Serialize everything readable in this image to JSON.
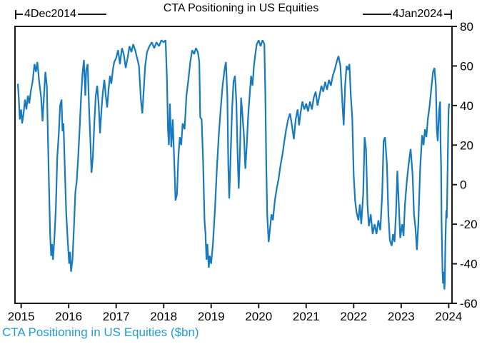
{
  "header": {
    "title": "CTA Positioning in US Equities",
    "range_start_label": "4Dec2014",
    "range_end_label": "4Jan2024"
  },
  "footer": {
    "series_label": "CTA Positioning in US Equities ($bn)"
  },
  "colors": {
    "line": "#1779BE",
    "axis": "#1a1a1a",
    "footer_text": "#219CD8",
    "background": "#ffffff"
  },
  "chart_data": {
    "type": "line",
    "title": "CTA Positioning in US Equities",
    "series_name": "CTA Positioning in US Equities ($bn)",
    "units": "$bn",
    "x_start": "4Dec2014",
    "x_end": "4Jan2024",
    "grid": false,
    "legend_position": "bottom-left",
    "y_axis_side": "right",
    "x_domain": [
      2014.87,
      2024.07
    ],
    "y_domain": [
      -60,
      80
    ],
    "x_ticks": [
      2015,
      2016,
      2017,
      2018,
      2019,
      2020,
      2021,
      2022,
      2023,
      2024
    ],
    "y_ticks": [
      80,
      60,
      40,
      20,
      0,
      -20,
      -40,
      -60
    ],
    "points": [
      [
        2014.93,
        51
      ],
      [
        2014.95,
        44
      ],
      [
        2014.97,
        33
      ],
      [
        2015.0,
        38
      ],
      [
        2015.02,
        31
      ],
      [
        2015.05,
        36
      ],
      [
        2015.08,
        43
      ],
      [
        2015.11,
        38
      ],
      [
        2015.14,
        45
      ],
      [
        2015.17,
        41
      ],
      [
        2015.2,
        47
      ],
      [
        2015.24,
        52
      ],
      [
        2015.28,
        61
      ],
      [
        2015.31,
        57
      ],
      [
        2015.34,
        62
      ],
      [
        2015.38,
        52
      ],
      [
        2015.42,
        44
      ],
      [
        2015.45,
        32
      ],
      [
        2015.48,
        45
      ],
      [
        2015.51,
        57
      ],
      [
        2015.54,
        50
      ],
      [
        2015.57,
        16
      ],
      [
        2015.59,
        -5
      ],
      [
        2015.61,
        -25
      ],
      [
        2015.63,
        -36
      ],
      [
        2015.65,
        -30
      ],
      [
        2015.67,
        -38
      ],
      [
        2015.7,
        -27
      ],
      [
        2015.73,
        -12
      ],
      [
        2015.76,
        14
      ],
      [
        2015.79,
        25
      ],
      [
        2015.82,
        40
      ],
      [
        2015.85,
        43
      ],
      [
        2015.87,
        27
      ],
      [
        2015.89,
        31
      ],
      [
        2015.92,
        8
      ],
      [
        2015.95,
        -15
      ],
      [
        2015.98,
        -28
      ],
      [
        2016.01,
        -40
      ],
      [
        2016.03,
        -34
      ],
      [
        2016.05,
        -44
      ],
      [
        2016.08,
        -38
      ],
      [
        2016.11,
        -22
      ],
      [
        2016.14,
        -4
      ],
      [
        2016.17,
        2
      ],
      [
        2016.2,
        14
      ],
      [
        2016.23,
        28
      ],
      [
        2016.26,
        44
      ],
      [
        2016.29,
        56
      ],
      [
        2016.32,
        63
      ],
      [
        2016.35,
        45
      ],
      [
        2016.37,
        58
      ],
      [
        2016.4,
        61
      ],
      [
        2016.43,
        38
      ],
      [
        2016.46,
        20
      ],
      [
        2016.48,
        6
      ],
      [
        2016.51,
        14
      ],
      [
        2016.54,
        31
      ],
      [
        2016.57,
        45
      ],
      [
        2016.6,
        50
      ],
      [
        2016.63,
        41
      ],
      [
        2016.66,
        26
      ],
      [
        2016.69,
        38
      ],
      [
        2016.72,
        47
      ],
      [
        2016.75,
        53
      ],
      [
        2016.78,
        45
      ],
      [
        2016.81,
        39
      ],
      [
        2016.84,
        48
      ],
      [
        2016.87,
        55
      ],
      [
        2016.9,
        51
      ],
      [
        2016.93,
        58
      ],
      [
        2016.96,
        62
      ],
      [
        2017.0,
        64
      ],
      [
        2017.04,
        68
      ],
      [
        2017.08,
        61
      ],
      [
        2017.12,
        69
      ],
      [
        2017.16,
        66
      ],
      [
        2017.2,
        59
      ],
      [
        2017.24,
        64
      ],
      [
        2017.28,
        70
      ],
      [
        2017.32,
        67
      ],
      [
        2017.36,
        71
      ],
      [
        2017.4,
        68
      ],
      [
        2017.44,
        64
      ],
      [
        2017.48,
        60
      ],
      [
        2017.52,
        43
      ],
      [
        2017.55,
        36
      ],
      [
        2017.58,
        48
      ],
      [
        2017.61,
        60
      ],
      [
        2017.65,
        67
      ],
      [
        2017.7,
        70
      ],
      [
        2017.75,
        72
      ],
      [
        2017.8,
        69
      ],
      [
        2017.85,
        72
      ],
      [
        2017.9,
        70
      ],
      [
        2017.95,
        73
      ],
      [
        2018.0,
        72
      ],
      [
        2018.04,
        73
      ],
      [
        2018.07,
        52
      ],
      [
        2018.09,
        28
      ],
      [
        2018.11,
        20
      ],
      [
        2018.13,
        41
      ],
      [
        2018.16,
        19
      ],
      [
        2018.19,
        33
      ],
      [
        2018.22,
        14
      ],
      [
        2018.25,
        -8
      ],
      [
        2018.28,
        -5
      ],
      [
        2018.31,
        14
      ],
      [
        2018.34,
        24
      ],
      [
        2018.37,
        20
      ],
      [
        2018.4,
        31
      ],
      [
        2018.44,
        28
      ],
      [
        2018.48,
        45
      ],
      [
        2018.52,
        53
      ],
      [
        2018.56,
        62
      ],
      [
        2018.6,
        68
      ],
      [
        2018.64,
        66
      ],
      [
        2018.68,
        69
      ],
      [
        2018.72,
        67
      ],
      [
        2018.75,
        62
      ],
      [
        2018.77,
        34
      ],
      [
        2018.8,
        33
      ],
      [
        2018.83,
        12
      ],
      [
        2018.86,
        -18
      ],
      [
        2018.88,
        -25
      ],
      [
        2018.9,
        -38
      ],
      [
        2018.92,
        -30
      ],
      [
        2018.95,
        -42
      ],
      [
        2018.97,
        -36
      ],
      [
        2019.0,
        -40
      ],
      [
        2019.04,
        -29
      ],
      [
        2019.08,
        -12
      ],
      [
        2019.12,
        8
      ],
      [
        2019.16,
        25
      ],
      [
        2019.2,
        38
      ],
      [
        2019.24,
        50
      ],
      [
        2019.28,
        58
      ],
      [
        2019.31,
        62
      ],
      [
        2019.34,
        45
      ],
      [
        2019.36,
        10
      ],
      [
        2019.38,
        -7
      ],
      [
        2019.41,
        15
      ],
      [
        2019.44,
        38
      ],
      [
        2019.47,
        52
      ],
      [
        2019.5,
        55
      ],
      [
        2019.53,
        42
      ],
      [
        2019.56,
        12
      ],
      [
        2019.58,
        -2
      ],
      [
        2019.61,
        20
      ],
      [
        2019.63,
        44
      ],
      [
        2019.66,
        35
      ],
      [
        2019.69,
        25
      ],
      [
        2019.72,
        8
      ],
      [
        2019.75,
        20
      ],
      [
        2019.78,
        35
      ],
      [
        2019.81,
        45
      ],
      [
        2019.84,
        55
      ],
      [
        2019.87,
        50
      ],
      [
        2019.9,
        60
      ],
      [
        2019.93,
        66
      ],
      [
        2019.96,
        71
      ],
      [
        2020.0,
        73
      ],
      [
        2020.04,
        70
      ],
      [
        2020.08,
        73
      ],
      [
        2020.12,
        71
      ],
      [
        2020.14,
        45
      ],
      [
        2020.16,
        10
      ],
      [
        2020.18,
        -15
      ],
      [
        2020.21,
        -29
      ],
      [
        2020.24,
        -22
      ],
      [
        2020.27,
        -15
      ],
      [
        2020.3,
        -18
      ],
      [
        2020.34,
        -8
      ],
      [
        2020.38,
        -2
      ],
      [
        2020.42,
        3
      ],
      [
        2020.46,
        10
      ],
      [
        2020.5,
        15
      ],
      [
        2020.54,
        22
      ],
      [
        2020.58,
        28
      ],
      [
        2020.62,
        33
      ],
      [
        2020.66,
        36
      ],
      [
        2020.7,
        30
      ],
      [
        2020.74,
        23
      ],
      [
        2020.78,
        33
      ],
      [
        2020.82,
        38
      ],
      [
        2020.85,
        30
      ],
      [
        2020.88,
        36
      ],
      [
        2020.92,
        42
      ],
      [
        2020.96,
        38
      ],
      [
        2021.0,
        41
      ],
      [
        2021.04,
        37
      ],
      [
        2021.08,
        42
      ],
      [
        2021.12,
        38
      ],
      [
        2021.16,
        44
      ],
      [
        2021.2,
        47
      ],
      [
        2021.24,
        40
      ],
      [
        2021.28,
        45
      ],
      [
        2021.32,
        50
      ],
      [
        2021.36,
        47
      ],
      [
        2021.4,
        52
      ],
      [
        2021.44,
        48
      ],
      [
        2021.48,
        53
      ],
      [
        2021.52,
        50
      ],
      [
        2021.56,
        55
      ],
      [
        2021.6,
        58
      ],
      [
        2021.64,
        62
      ],
      [
        2021.68,
        65
      ],
      [
        2021.72,
        60
      ],
      [
        2021.76,
        42
      ],
      [
        2021.79,
        30
      ],
      [
        2021.82,
        50
      ],
      [
        2021.85,
        60
      ],
      [
        2021.88,
        58
      ],
      [
        2021.91,
        61
      ],
      [
        2021.94,
        45
      ],
      [
        2021.97,
        34
      ],
      [
        2022.0,
        5
      ],
      [
        2022.03,
        -8
      ],
      [
        2022.06,
        -14
      ],
      [
        2022.1,
        -18
      ],
      [
        2022.13,
        -10
      ],
      [
        2022.16,
        -20
      ],
      [
        2022.2,
        -5
      ],
      [
        2022.23,
        24
      ],
      [
        2022.26,
        18
      ],
      [
        2022.29,
        -10
      ],
      [
        2022.32,
        -21
      ],
      [
        2022.36,
        -15
      ],
      [
        2022.4,
        -25
      ],
      [
        2022.44,
        -20
      ],
      [
        2022.48,
        -25
      ],
      [
        2022.52,
        -18
      ],
      [
        2022.56,
        -23
      ],
      [
        2022.6,
        -5
      ],
      [
        2022.63,
        22
      ],
      [
        2022.66,
        24
      ],
      [
        2022.7,
        10
      ],
      [
        2022.73,
        -15
      ],
      [
        2022.76,
        -28
      ],
      [
        2022.8,
        -31
      ],
      [
        2022.83,
        -25
      ],
      [
        2022.86,
        -29
      ],
      [
        2022.89,
        -15
      ],
      [
        2022.92,
        7
      ],
      [
        2022.95,
        -10
      ],
      [
        2022.98,
        -27
      ],
      [
        2023.02,
        -20
      ],
      [
        2023.05,
        -26
      ],
      [
        2023.08,
        -10
      ],
      [
        2023.12,
        2
      ],
      [
        2023.16,
        11
      ],
      [
        2023.2,
        18
      ],
      [
        2023.24,
        5
      ],
      [
        2023.27,
        -15
      ],
      [
        2023.3,
        -22
      ],
      [
        2023.33,
        -33
      ],
      [
        2023.36,
        -20
      ],
      [
        2023.4,
        8
      ],
      [
        2023.44,
        25
      ],
      [
        2023.47,
        20
      ],
      [
        2023.5,
        28
      ],
      [
        2023.53,
        24
      ],
      [
        2023.56,
        33
      ],
      [
        2023.6,
        40
      ],
      [
        2023.64,
        50
      ],
      [
        2023.67,
        57
      ],
      [
        2023.7,
        59
      ],
      [
        2023.73,
        50
      ],
      [
        2023.75,
        28
      ],
      [
        2023.77,
        22
      ],
      [
        2023.8,
        38
      ],
      [
        2023.82,
        42
      ],
      [
        2023.83,
        20
      ],
      [
        2023.84,
        10
      ],
      [
        2023.85,
        -20
      ],
      [
        2023.86,
        -30
      ],
      [
        2023.87,
        -44
      ],
      [
        2023.88,
        -50
      ],
      [
        2023.89,
        -44
      ],
      [
        2023.9,
        -47
      ],
      [
        2023.91,
        -53
      ],
      [
        2023.92,
        -48
      ],
      [
        2023.93,
        -30
      ],
      [
        2023.94,
        -20
      ],
      [
        2023.95,
        -13
      ],
      [
        2023.96,
        -17
      ],
      [
        2023.97,
        -5
      ],
      [
        2023.98,
        12
      ],
      [
        2023.99,
        28
      ],
      [
        2024.0,
        38
      ],
      [
        2024.01,
        41
      ]
    ]
  }
}
